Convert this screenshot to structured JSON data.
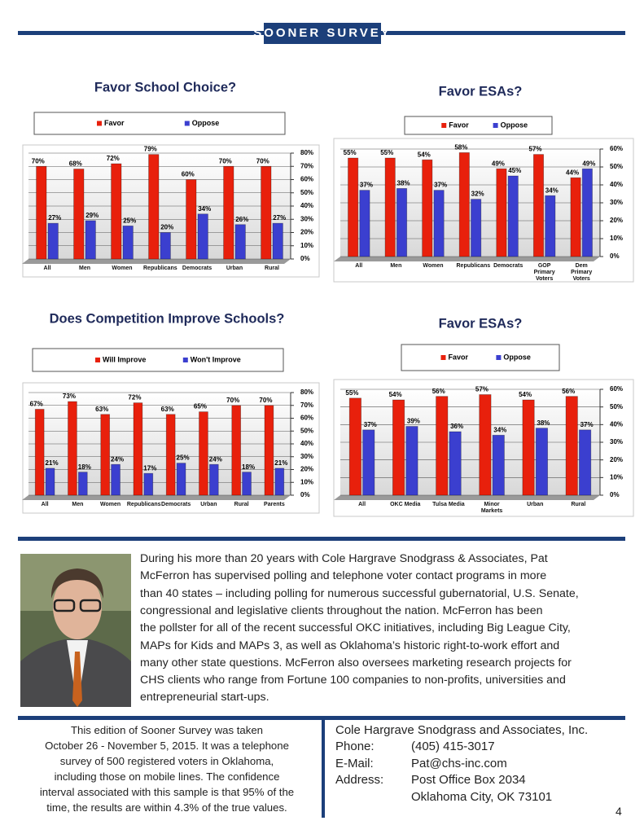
{
  "header": {
    "title": "SOONER SURVEY"
  },
  "chart_data": [
    {
      "type": "bar",
      "title": "Favor School Choice?",
      "categories": [
        "All",
        "Men",
        "Women",
        "Republicans",
        "Democrats",
        "Urban",
        "Rural"
      ],
      "series": [
        {
          "name": "Favor",
          "color": "#e8200c",
          "values": [
            70,
            68,
            72,
            79,
            60,
            70,
            70
          ],
          "value_labels": [
            "70%",
            "68%",
            "72%",
            "79%",
            "60%",
            "70%",
            "70%"
          ]
        },
        {
          "name": "Oppose",
          "color": "#3b3fcf",
          "values": [
            27,
            29,
            25,
            20,
            34,
            26,
            27
          ],
          "value_labels": [
            "27%",
            "29%",
            "25%",
            "20%",
            "34%",
            "26%",
            "27%"
          ]
        }
      ],
      "ylim": [
        0,
        80
      ],
      "yticks": [
        {
          "value": 0,
          "label": "0%"
        },
        {
          "value": 10,
          "label": "10%"
        },
        {
          "value": 20,
          "label": "20%"
        },
        {
          "value": 30,
          "label": "30%"
        },
        {
          "value": 40,
          "label": "40%"
        },
        {
          "value": 50,
          "label": "50%"
        },
        {
          "value": 60,
          "label": "60%"
        },
        {
          "value": 70,
          "label": "70%"
        },
        {
          "value": 80,
          "label": "80%"
        }
      ],
      "grid": true
    },
    {
      "type": "bar",
      "title": "Favor ESAs?",
      "categories": [
        "All",
        "Men",
        "Women",
        "Republicans",
        "Democrats",
        "GOP Primary Voters",
        "Dem Primary Voters"
      ],
      "series": [
        {
          "name": "Favor",
          "color": "#e8200c",
          "values": [
            55,
            55,
            54,
            58,
            49,
            57,
            44
          ],
          "value_labels": [
            "55%",
            "55%",
            "54%",
            "58%",
            "49%",
            "57%",
            "44%"
          ]
        },
        {
          "name": "Oppose",
          "color": "#3b3fcf",
          "values": [
            37,
            38,
            37,
            32,
            45,
            34,
            49
          ],
          "value_labels": [
            "37%",
            "38%",
            "37%",
            "32%",
            "45%",
            "34%",
            "49%"
          ]
        }
      ],
      "ylim": [
        0,
        60
      ],
      "yticks": [
        {
          "value": 0,
          "label": "0%"
        },
        {
          "value": 10,
          "label": "10%"
        },
        {
          "value": 20,
          "label": "20%"
        },
        {
          "value": 30,
          "label": "30%"
        },
        {
          "value": 40,
          "label": "40%"
        },
        {
          "value": 50,
          "label": "50%"
        },
        {
          "value": 60,
          "label": "60%"
        }
      ],
      "grid": true
    },
    {
      "type": "bar",
      "title": "Does Competition Improve Schools?",
      "categories": [
        "All",
        "Men",
        "Women",
        "Republicans",
        "Democrats",
        "Urban",
        "Rural",
        "Parents"
      ],
      "series": [
        {
          "name": "Will Improve",
          "color": "#e8200c",
          "values": [
            67,
            73,
            63,
            72,
            63,
            65,
            70,
            70
          ],
          "value_labels": [
            "67%",
            "73%",
            "63%",
            "72%",
            "63%",
            "65%",
            "70%",
            "70%"
          ]
        },
        {
          "name": "Won't Improve",
          "color": "#3b3fcf",
          "values": [
            21,
            18,
            24,
            17,
            25,
            24,
            18,
            21
          ],
          "value_labels": [
            "21%",
            "18%",
            "24%",
            "17%",
            "25%",
            "24%",
            "18%",
            "21%"
          ]
        }
      ],
      "ylim": [
        0,
        80
      ],
      "yticks": [
        {
          "value": 0,
          "label": "0%"
        },
        {
          "value": 10,
          "label": "10%"
        },
        {
          "value": 20,
          "label": "20%"
        },
        {
          "value": 30,
          "label": "30%"
        },
        {
          "value": 40,
          "label": "40%"
        },
        {
          "value": 50,
          "label": "50%"
        },
        {
          "value": 60,
          "label": "60%"
        },
        {
          "value": 70,
          "label": "70%"
        },
        {
          "value": 80,
          "label": "80%"
        }
      ],
      "grid": true
    },
    {
      "type": "bar",
      "title": "Favor ESAs?",
      "categories": [
        "All",
        "OKC Media",
        "Tulsa Media",
        "Minor Markets",
        "Urban",
        "Rural"
      ],
      "series": [
        {
          "name": "Favor",
          "color": "#e8200c",
          "values": [
            55,
            54,
            56,
            57,
            54,
            56
          ],
          "value_labels": [
            "55%",
            "54%",
            "56%",
            "57%",
            "54%",
            "56%"
          ]
        },
        {
          "name": "Oppose",
          "color": "#3b3fcf",
          "values": [
            37,
            39,
            36,
            34,
            38,
            37
          ],
          "value_labels": [
            "37%",
            "39%",
            "36%",
            "34%",
            "38%",
            "37%"
          ]
        }
      ],
      "ylim": [
        0,
        60
      ],
      "yticks": [
        {
          "value": 0,
          "label": "0%"
        },
        {
          "value": 10,
          "label": "10%"
        },
        {
          "value": 20,
          "label": "20%"
        },
        {
          "value": 30,
          "label": "30%"
        },
        {
          "value": 40,
          "label": "40%"
        },
        {
          "value": 50,
          "label": "50%"
        },
        {
          "value": 60,
          "label": "60%"
        }
      ],
      "grid": true
    }
  ],
  "bio": {
    "lines": [
      "During his more than 20 years with Cole Hargrave Snodgrass & Associates, Pat",
      "McFerron has supervised polling and telephone voter contact programs in more",
      "than 40 states – including polling for numerous successful gubernatorial, U.S. Senate,",
      "congressional and legislative clients throughout the nation.  McFerron has been",
      "the pollster for all of the recent successful OKC initiatives, including Big League City,",
      "MAPs for Kids and MAPs 3, as well as Oklahoma’s historic right-to-work effort and",
      "many other state questions.  McFerron also oversees marketing research projects for",
      "CHS clients who range from Fortune 100 companies to non-profits, universities and",
      "entrepreneurial start-ups."
    ]
  },
  "methodology": {
    "lines": [
      "This edition of Sooner Survey was taken",
      "October 26 - November 5, 2015. It was a telephone",
      "survey of 500 registered voters in Oklahoma,",
      "including those on mobile lines. The confidence",
      "interval associated with this sample is that 95% of the",
      "time, the results are within 4.3% of the true values."
    ]
  },
  "contact": {
    "company": "Cole Hargrave Snodgrass and Associates, Inc.",
    "rows": [
      {
        "label": "Phone:",
        "value": "(405) 415-3017"
      },
      {
        "label": "E-Mail:",
        "value": "Pat@chs-inc.com"
      }
    ],
    "address": {
      "label": "Address:",
      "lines": [
        "Post Office Box 2034",
        "Oklahoma City, OK 73101"
      ]
    }
  },
  "page_number": "4"
}
